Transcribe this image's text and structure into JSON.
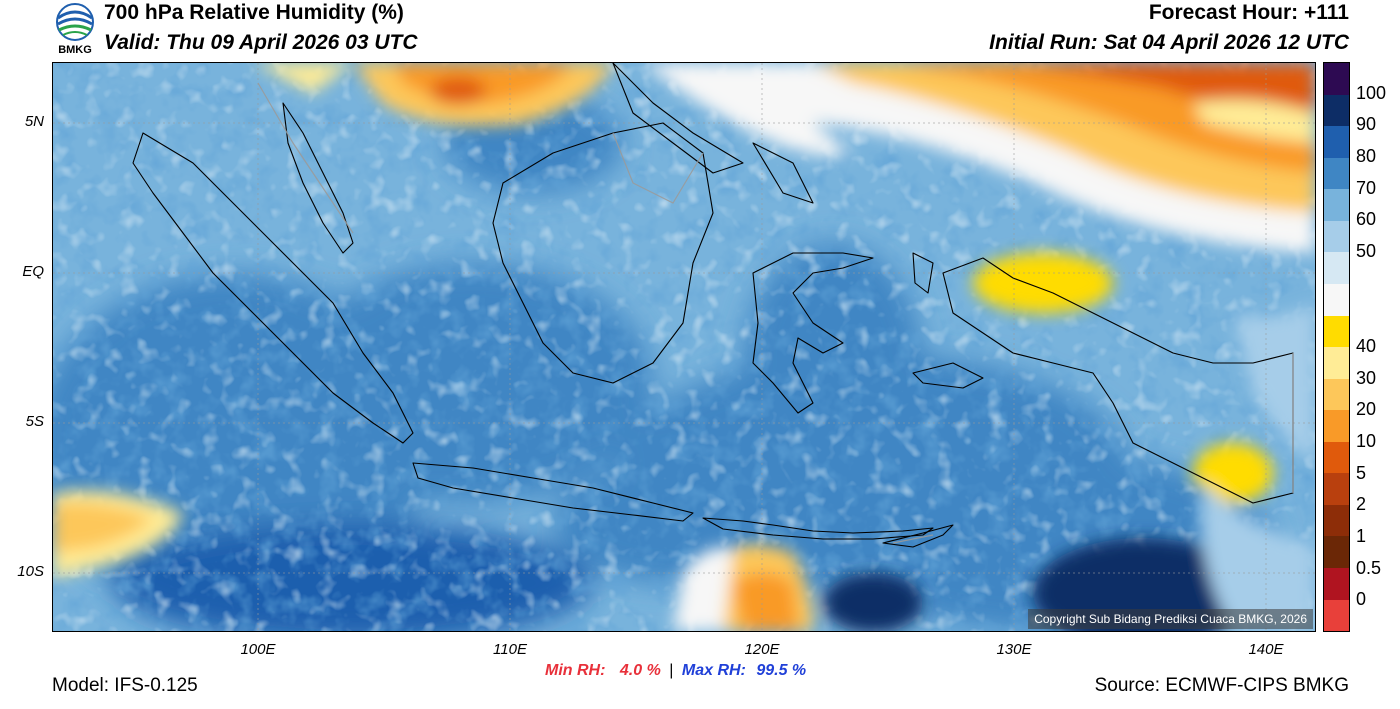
{
  "header": {
    "title": "700 hPa Relative Humidity (%)",
    "valid": "Valid: Thu 09 April 2026 03 UTC",
    "forecast_hour": "Forecast Hour: +111",
    "initial_run": "Initial Run: Sat 04 April 2026 12 UTC"
  },
  "logo": {
    "text": "BMKG",
    "colors": {
      "blue": "#1f5fae",
      "green": "#2aa34a"
    }
  },
  "map": {
    "region": "Indonesia",
    "lat_labels": [
      "5N",
      "EQ",
      "5S",
      "10S"
    ],
    "lon_labels": [
      "100E",
      "110E",
      "120E",
      "130E",
      "140E"
    ],
    "lat_values": [
      5,
      0,
      -5,
      -10
    ],
    "lon_values": [
      100,
      110,
      120,
      130,
      140
    ],
    "extent": {
      "lon_min": 92,
      "lon_max": 142,
      "lat_min": -12,
      "lat_max": 7
    },
    "copyright": "Copyright Sub Bidang Prediksi Cuaca BMKG, 2026"
  },
  "stats": {
    "min_label": "Min RH:",
    "min_value": "4.0 %",
    "separator": "|",
    "max_label": "Max RH:",
    "max_value": "99.5 %"
  },
  "footer": {
    "model": "Model: IFS-0.125",
    "source": "Source: ECMWF-CIPS BMKG"
  },
  "colorbar": {
    "labels": [
      "100",
      "90",
      "80",
      "70",
      "60",
      "50",
      "40",
      "30",
      "20",
      "10",
      "5",
      "2",
      "1",
      "0.5",
      "0"
    ],
    "colors": [
      "#2d0a52",
      "#0d2d66",
      "#1f5fae",
      "#3f86c4",
      "#78b3dc",
      "#a6cde9",
      "#d6e8f3",
      "#f7f7f7",
      "#ffdc00",
      "#ffec96",
      "#fdc75a",
      "#f99a28",
      "#e05a0c",
      "#b9400e",
      "#8d2d08",
      "#6b2706",
      "#b01420",
      "#e8403a"
    ]
  }
}
